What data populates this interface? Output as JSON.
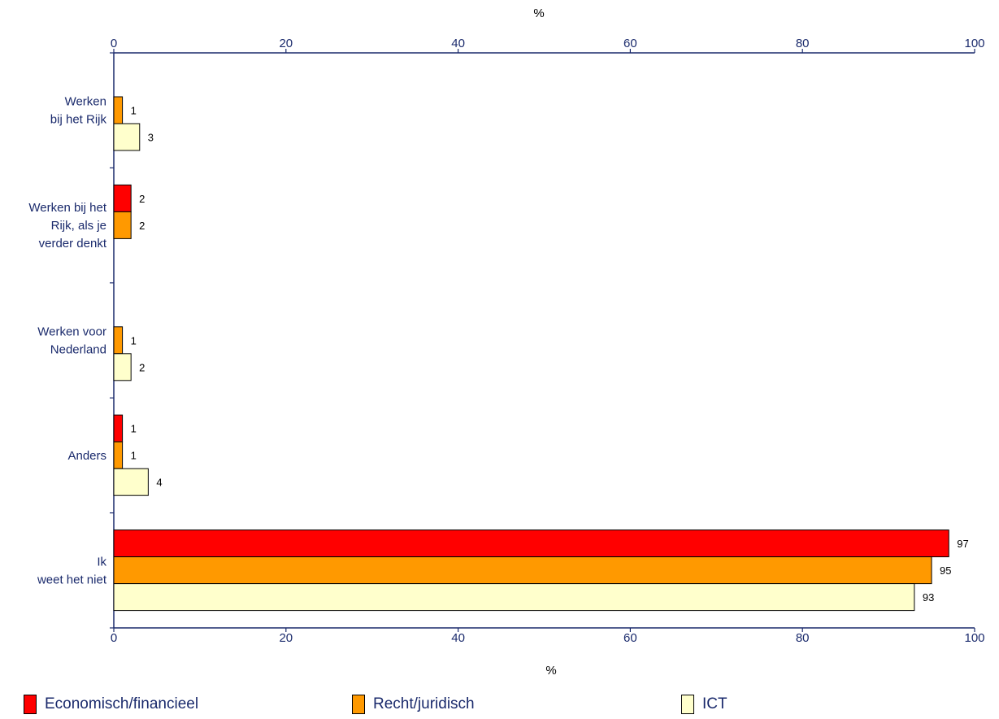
{
  "chart_data": {
    "type": "bar",
    "orientation": "horizontal",
    "categories": [
      [
        "Werken",
        "bij het Rijk"
      ],
      [
        "Werken bij het",
        "Rijk, als je",
        "verder denkt"
      ],
      [
        "Werken voor",
        "Nederland"
      ],
      [
        "Anders"
      ],
      [
        "Ik",
        "weet het niet"
      ]
    ],
    "series": [
      {
        "name": "Economisch/financieel",
        "color": "#ff0000",
        "values": [
          null,
          2,
          null,
          1,
          97
        ]
      },
      {
        "name": "Recht/juridisch",
        "color": "#ff9900",
        "values": [
          1,
          2,
          1,
          1,
          95
        ]
      },
      {
        "name": "ICT",
        "color": "#ffffcc",
        "values": [
          3,
          null,
          2,
          4,
          93
        ]
      }
    ],
    "xlim": [
      0,
      100
    ],
    "xticks": [
      0,
      20,
      40,
      60,
      80,
      100
    ],
    "xlabel_top": "%",
    "xlabel_bottom": "%",
    "legend_position": "bottom"
  }
}
